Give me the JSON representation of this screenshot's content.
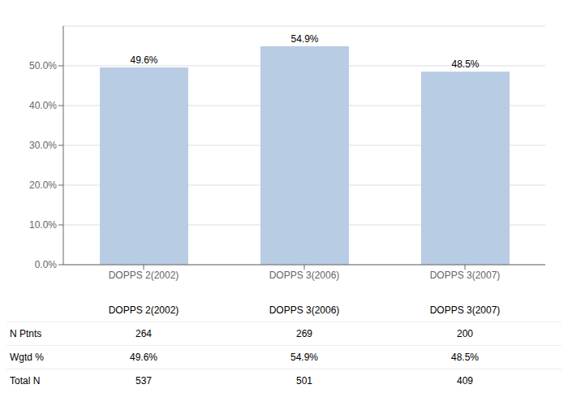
{
  "chart_data": {
    "type": "bar",
    "categories": [
      "DOPPS 2(2002)",
      "DOPPS 3(2006)",
      "DOPPS 3(2007)"
    ],
    "values": [
      49.6,
      54.9,
      48.5
    ],
    "value_labels": [
      "49.6%",
      "54.9%",
      "48.5%"
    ],
    "data_labels": true,
    "color": "#b8cce4",
    "ylim": [
      0,
      60
    ],
    "yticks": [
      {
        "value": 0,
        "label": "0.0%"
      },
      {
        "value": 10,
        "label": "10.0%"
      },
      {
        "value": 20,
        "label": "20.0%"
      },
      {
        "value": 30,
        "label": "30.0%"
      },
      {
        "value": 40,
        "label": "40.0%"
      },
      {
        "value": 50,
        "label": "50.0%"
      }
    ],
    "grid": true,
    "table": {
      "row_labels": [
        "N Ptnts",
        "Wgtd %",
        "Total N"
      ],
      "rows": [
        [
          "264",
          "269",
          "200"
        ],
        [
          "49.6%",
          "54.9%",
          "48.5%"
        ],
        [
          "537",
          "501",
          "409"
        ]
      ]
    }
  }
}
